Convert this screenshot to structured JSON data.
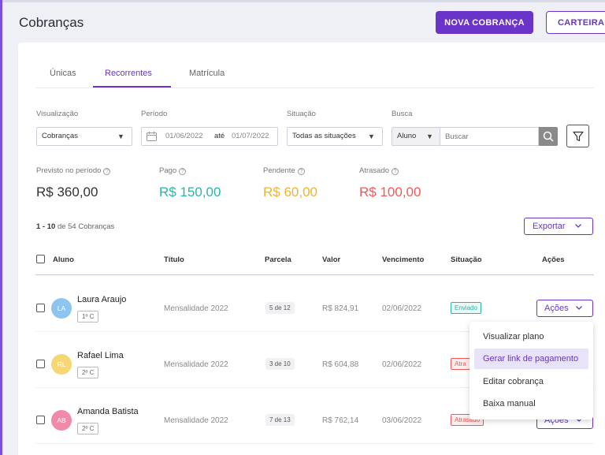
{
  "header": {
    "title": "Cobranças",
    "primary_button": "NOVA COBRANÇA",
    "secondary_button": "CARTEIRA"
  },
  "tabs": [
    {
      "label": "Únicas",
      "active": false
    },
    {
      "label": "Recorrentes",
      "active": true
    },
    {
      "label": "Matrícula",
      "active": false
    }
  ],
  "filters": {
    "view_label": "Visualização",
    "view_value": "Cobranças",
    "period_label": "Período",
    "period_start": "01/06/2022",
    "period_separator": "até",
    "period_end": "01/07/2022",
    "status_label": "Situação",
    "status_value": "Todas as situações",
    "search_label": "Busca",
    "search_type": "Aluno",
    "search_placeholder": "Buscar"
  },
  "summary": [
    {
      "label": "Previsto no período",
      "value": "R$ 360,00",
      "color": "#333333"
    },
    {
      "label": "Pago",
      "value": "R$ 150,00",
      "color": "#2bb5a8"
    },
    {
      "label": "Pendente",
      "value": "R$ 60,00",
      "color": "#f2b233"
    },
    {
      "label": "Atrasado",
      "value": "R$ 100,00",
      "color": "#ef5a5a"
    }
  ],
  "pagination": {
    "range": "1 - 10",
    "text": "de 54 Cobranças"
  },
  "export_button": "Exportar",
  "table": {
    "headers": [
      "Aluno",
      "Título",
      "Parcela",
      "Valor",
      "Vencimento",
      "Situação",
      "Ações"
    ],
    "rows": [
      {
        "initials": "LA",
        "avatar_color": "#8ec5f0",
        "name": "Laura Araujo",
        "class": "1º C",
        "title": "Mensalidade 2022",
        "parcela": "5 de 12",
        "valor": "R$ 824,91",
        "vencimento": "02/06/2022",
        "status": "Enviado",
        "status_color": "#2bb5a8",
        "actions": "Ações"
      },
      {
        "initials": "RL",
        "avatar_color": "#f7d774",
        "name": "Rafael Lima",
        "class": "2º C",
        "title": "Mensalidade 2022",
        "parcela": "3 de 10",
        "valor": "R$ 604,88",
        "vencimento": "02/06/2022",
        "status": "Atra",
        "status_color": "#ef5a5a",
        "actions": "Ações"
      },
      {
        "initials": "AB",
        "avatar_color": "#f08aa8",
        "name": "Amanda Batista",
        "class": "2º C",
        "title": "Mensalidade 2022",
        "parcela": "7 de 13",
        "valor": "R$ 762,14",
        "vencimento": "03/06/2022",
        "status": "Atrasado",
        "status_color": "#ef5a5a",
        "actions": "Ações"
      }
    ]
  },
  "actions_menu": [
    {
      "label": "Visualizar plano",
      "highlight": false
    },
    {
      "label": "Gerar link de pagamento",
      "highlight": true
    },
    {
      "label": "Editar cobrança",
      "highlight": false
    },
    {
      "label": "Baixa manual",
      "highlight": false
    }
  ],
  "colors": {
    "accent": "#6a34c9"
  }
}
